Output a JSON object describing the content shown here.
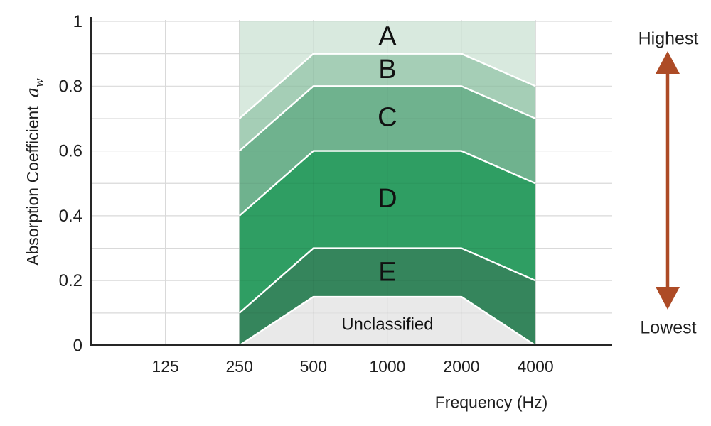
{
  "chart_data": {
    "type": "area",
    "title": "",
    "xlabel": "Frequency (Hz)",
    "ylabel": "Absorption Coefficient",
    "ylabel_symbol": "a",
    "ylabel_symbol_subscript": "w",
    "x_scale": "log2",
    "x_ticks": [
      "125",
      "250",
      "500",
      "1000",
      "2000",
      "4000"
    ],
    "x_tick_values": [
      125,
      250,
      500,
      1000,
      2000,
      4000
    ],
    "y_ticks": [
      "0",
      "0.2",
      "0.4",
      "0.6",
      "0.8",
      "1"
    ],
    "y_tick_values": [
      0,
      0.2,
      0.4,
      0.6,
      0.8,
      1
    ],
    "ylim": [
      0,
      1
    ],
    "grid": true,
    "grid_step_y": 0.1,
    "grid_color": "#d9d9d9",
    "axis_color": "#262626",
    "band_boundary_stroke": "#ffffff",
    "frequencies": [
      250,
      500,
      1000,
      2000,
      4000
    ],
    "bands": [
      {
        "label": "A",
        "color": "#d8e9de",
        "upper": [
          1.0,
          1.0,
          1.0,
          1.0,
          1.0
        ],
        "lower": [
          0.7,
          0.9,
          0.9,
          0.9,
          0.8
        ],
        "label_pos": [
          1000,
          0.955
        ]
      },
      {
        "label": "B",
        "color": "#a5ceb6",
        "upper": [
          0.7,
          0.9,
          0.9,
          0.9,
          0.8
        ],
        "lower": [
          0.6,
          0.8,
          0.8,
          0.8,
          0.7
        ],
        "label_pos": [
          1000,
          0.853
        ]
      },
      {
        "label": "C",
        "color": "#6fb28e",
        "upper": [
          0.6,
          0.8,
          0.8,
          0.8,
          0.7
        ],
        "lower": [
          0.4,
          0.6,
          0.6,
          0.6,
          0.5
        ],
        "label_pos": [
          1000,
          0.705
        ]
      },
      {
        "label": "D",
        "color": "#2f9e63",
        "upper": [
          0.4,
          0.6,
          0.6,
          0.6,
          0.5
        ],
        "lower": [
          0.1,
          0.3,
          0.3,
          0.3,
          0.2
        ],
        "label_pos": [
          1000,
          0.455
        ]
      },
      {
        "label": "E",
        "color": "#35855c",
        "upper": [
          0.1,
          0.3,
          0.3,
          0.3,
          0.2
        ],
        "lower": [
          0.0,
          0.15,
          0.15,
          0.15,
          0.0
        ],
        "label_pos": [
          1000,
          0.228
        ]
      },
      {
        "label": "Unclassified",
        "color": "#e9e9e9",
        "upper": [
          0.0,
          0.15,
          0.15,
          0.15,
          0.0
        ],
        "lower": [
          0.0,
          0.0,
          0.0,
          0.0,
          0.0
        ],
        "label_pos": [
          1000,
          0.066
        ]
      }
    ],
    "annotation_arrow": {
      "top_label": "Highest",
      "bottom_label": "Lowest",
      "color": "#ad4b26"
    }
  }
}
